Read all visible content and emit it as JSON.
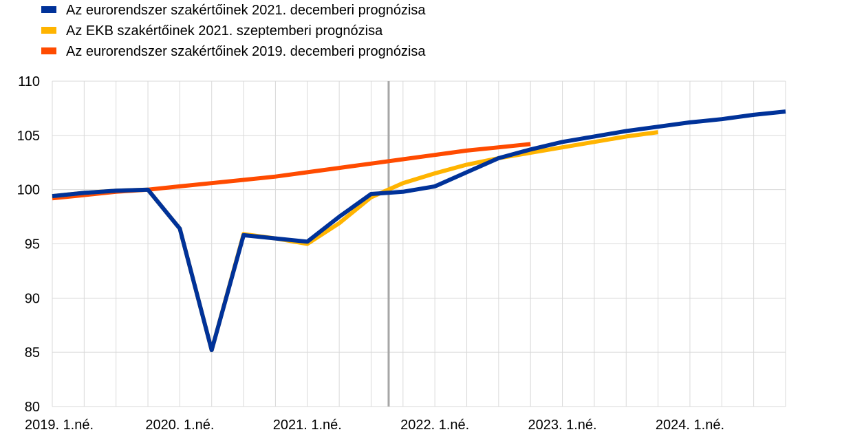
{
  "chart_data": {
    "type": "line",
    "title": "",
    "xlabel": "",
    "ylabel": "",
    "ylim": [
      80,
      110
    ],
    "yticks": [
      80,
      85,
      90,
      95,
      100,
      105,
      110
    ],
    "xlim": [
      "2019Q1",
      "2024Q4"
    ],
    "quarters": [
      "2019Q1",
      "2019Q2",
      "2019Q3",
      "2019Q4",
      "2020Q1",
      "2020Q2",
      "2020Q3",
      "2020Q4",
      "2021Q1",
      "2021Q2",
      "2021Q3",
      "2021Q4",
      "2022Q1",
      "2022Q2",
      "2022Q3",
      "2022Q4",
      "2023Q1",
      "2023Q2",
      "2023Q3",
      "2023Q4",
      "2024Q1",
      "2024Q2",
      "2024Q3",
      "2024Q4"
    ],
    "xtick_labels": [
      {
        "quarter": "2019Q1",
        "label": "2019. 1.né."
      },
      {
        "quarter": "2020Q1",
        "label": "2020. 1.né."
      },
      {
        "quarter": "2021Q1",
        "label": "2021. 1.né."
      },
      {
        "quarter": "2022Q1",
        "label": "2022. 1.né."
      },
      {
        "quarter": "2023Q1",
        "label": "2023. 1.né."
      },
      {
        "quarter": "2024Q1",
        "label": "2024. 1.né."
      }
    ],
    "grid": true,
    "legend_position": "top-left",
    "vertical_marker": {
      "quarter": "2021Q4",
      "offset": 0.55,
      "color": "#A6A6A6"
    },
    "series": [
      {
        "name": "Az eurorendszer szakértőinek 2019. decemberi prognózisa",
        "color": "#FF4B00",
        "start": "2019Q1",
        "values": [
          99.2,
          99.5,
          99.8,
          100.0,
          100.3,
          100.6,
          100.9,
          101.2,
          101.6,
          102.0,
          102.4,
          102.8,
          103.2,
          103.6,
          103.9,
          104.2
        ]
      },
      {
        "name": "Az EKB szakértőinek 2021. szeptemberi prognózisa",
        "color": "#FFB400",
        "start": "2019Q1",
        "values": [
          99.4,
          99.7,
          99.9,
          100.0,
          96.4,
          85.2,
          95.9,
          95.5,
          95.0,
          96.9,
          99.3,
          100.6,
          101.5,
          102.3,
          102.9,
          103.4,
          103.9,
          104.4,
          104.9,
          105.3
        ]
      },
      {
        "name": "Az eurorendszer szakértőinek 2021. decemberi prognózisa",
        "color": "#003299",
        "start": "2019Q1",
        "values": [
          99.4,
          99.7,
          99.9,
          100.0,
          96.4,
          85.2,
          95.8,
          95.5,
          95.2,
          97.5,
          99.6,
          99.8,
          100.3,
          101.6,
          102.9,
          103.7,
          104.4,
          104.9,
          105.4,
          105.8,
          106.2,
          106.5,
          106.9,
          107.2
        ]
      }
    ],
    "legend": [
      {
        "series": "Az eurorendszer szakértőinek 2021. decemberi prognózisa",
        "color": "#003299"
      },
      {
        "series": "Az EKB szakértőinek 2021. szeptemberi prognózisa",
        "color": "#FFB400"
      },
      {
        "series": "Az eurorendszer szakértőinek 2019. decemberi prognózisa",
        "color": "#FF4B00"
      }
    ]
  }
}
